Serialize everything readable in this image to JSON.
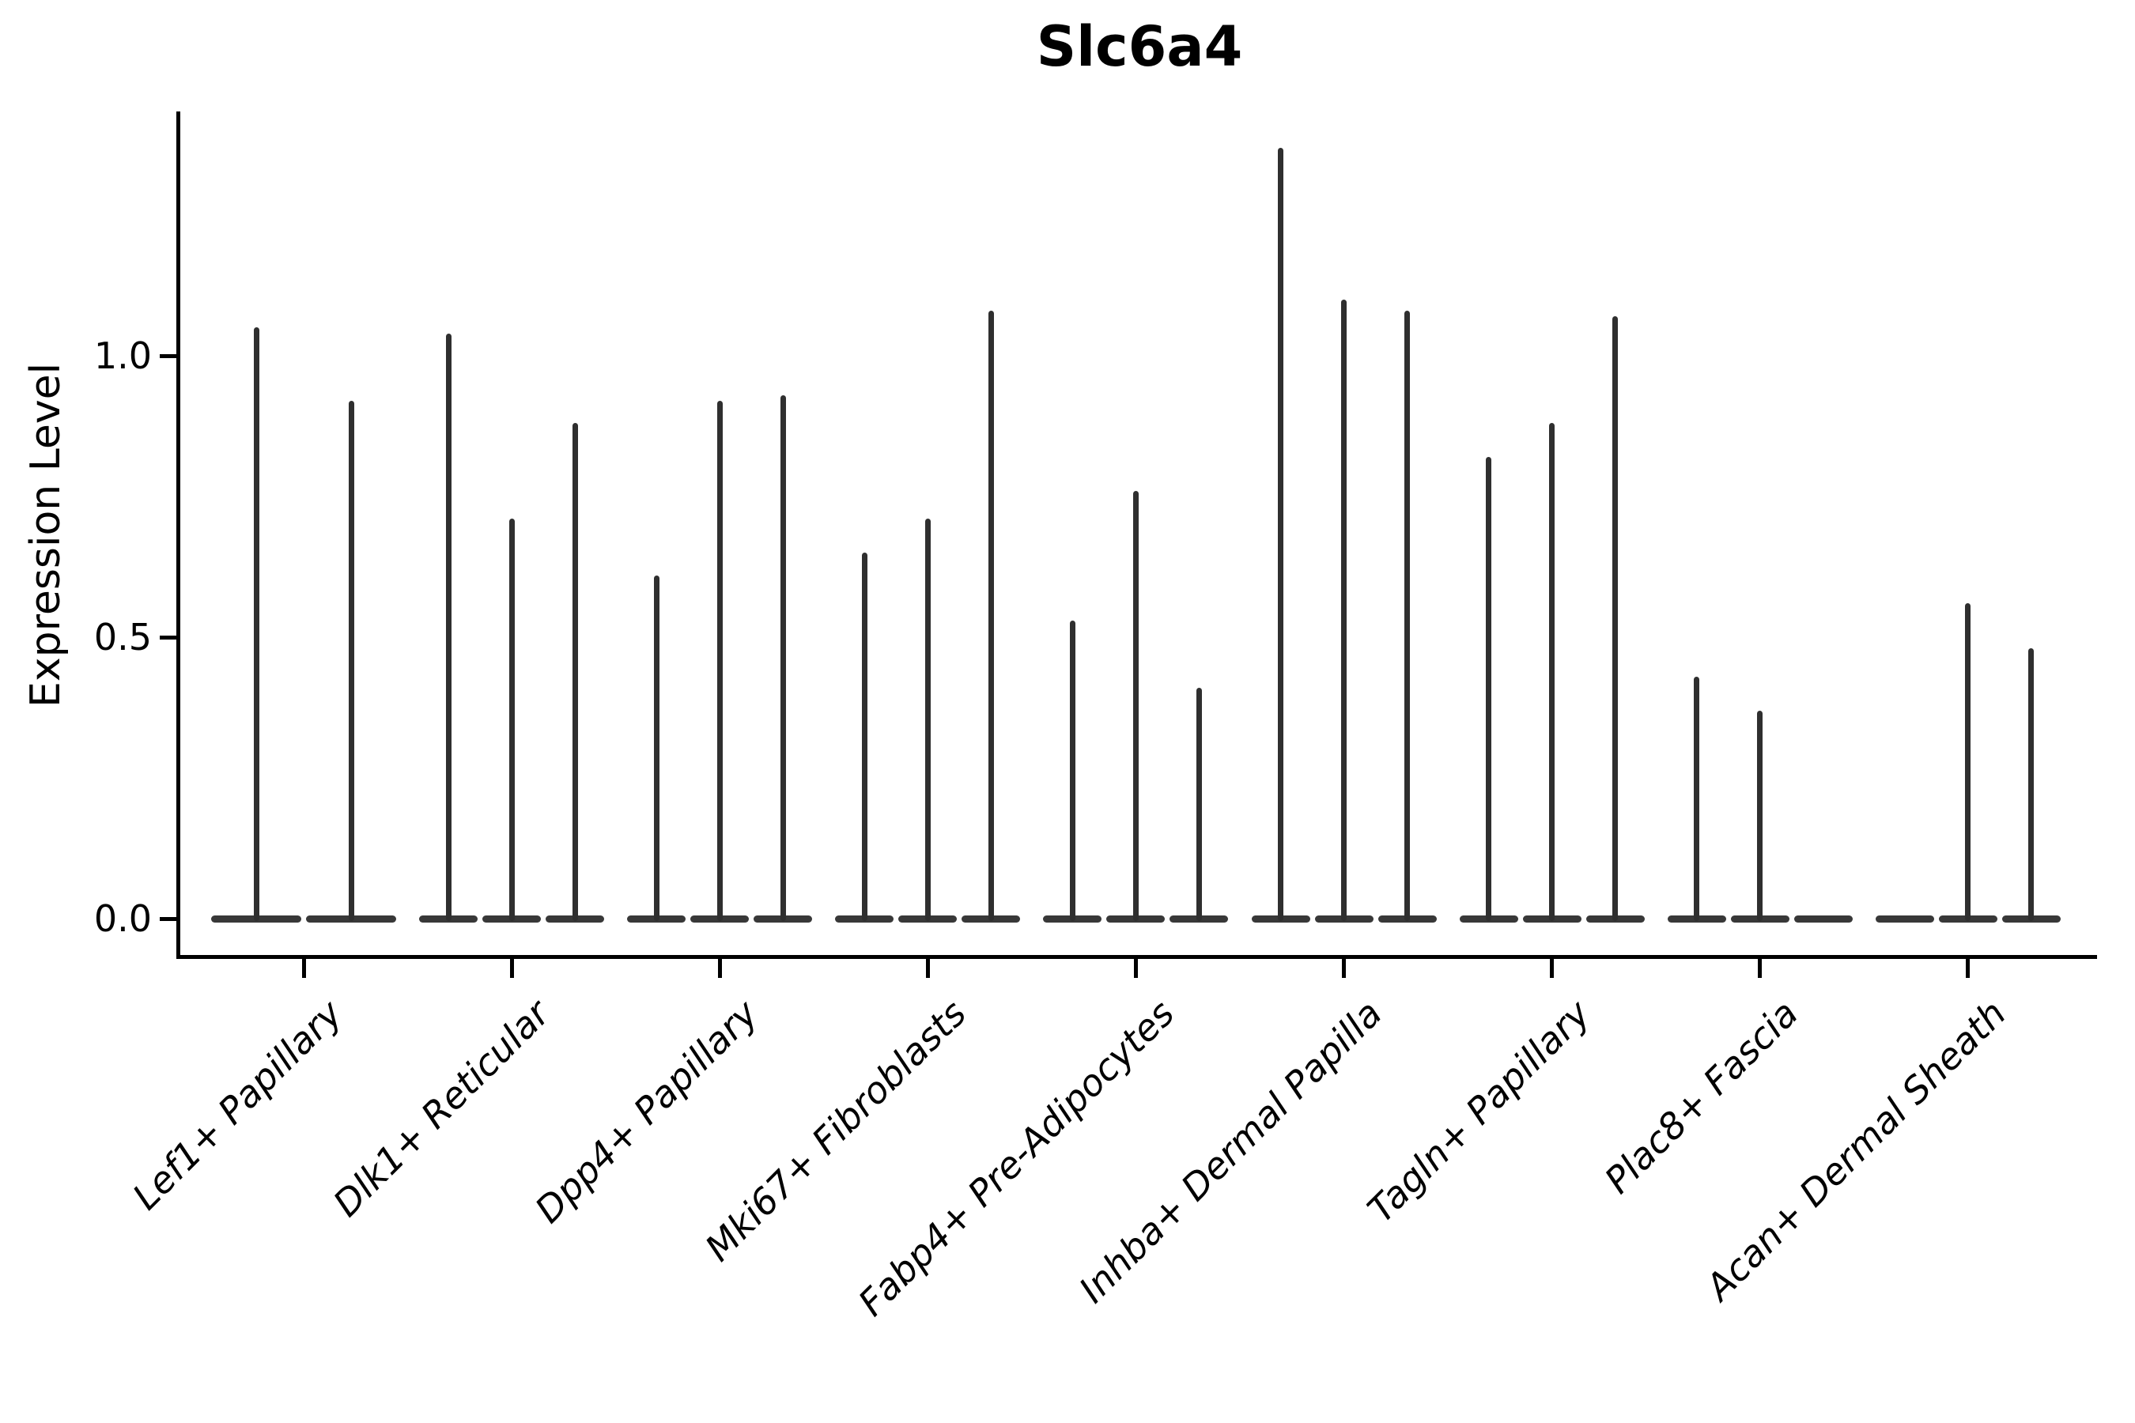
{
  "chart_data": {
    "type": "violin",
    "title": "Slc6a4",
    "ylabel": "Expression Level",
    "xlabel": "",
    "ylim": [
      0,
      1.43
    ],
    "grid": false,
    "legend": "none",
    "yticks": [
      {
        "value": 0.0,
        "label": "0.0"
      },
      {
        "value": 0.5,
        "label": "0.5"
      },
      {
        "value": 1.0,
        "label": "1.0"
      }
    ],
    "categories": [
      "Lef1+ Papillary",
      "Dlk1+ Reticular",
      "Dpp4+ Papillary",
      "Mki67+ Fibroblasts",
      "Fabp4+ Pre-Adipocytes",
      "Inhba+ Dermal Papilla",
      "Tagln+ Papillary",
      "Plac8+ Fascia",
      "Acan+ Dermal Sheath"
    ],
    "groups": [
      {
        "category": "Lef1+ Papillary",
        "violin_max_values": [
          1.05,
          0.92
        ]
      },
      {
        "category": "Dlk1+ Reticular",
        "violin_max_values": [
          1.04,
          0.71,
          0.88
        ]
      },
      {
        "category": "Dpp4+ Papillary",
        "violin_max_values": [
          0.61,
          0.92,
          0.93
        ]
      },
      {
        "category": "Mki67+ Fibroblasts",
        "violin_max_values": [
          0.65,
          0.71,
          1.08
        ]
      },
      {
        "category": "Fabp4+ Pre-Adipocytes",
        "violin_max_values": [
          0.53,
          0.76,
          0.41
        ]
      },
      {
        "category": "Inhba+ Dermal Papilla",
        "violin_max_values": [
          1.37,
          1.1,
          1.08
        ]
      },
      {
        "category": "Tagln+ Papillary",
        "violin_max_values": [
          0.82,
          0.88,
          1.07
        ]
      },
      {
        "category": "Plac8+ Fascia",
        "violin_max_values": [
          0.43,
          0.37,
          0
        ]
      },
      {
        "category": "Acan+ Dermal Sheath",
        "violin_max_values": [
          0,
          0.56,
          0.48
        ]
      }
    ],
    "colors": {
      "spike": "#2f2f2f",
      "violin_base": "#383838",
      "axis": "#000000",
      "text": "#000000",
      "background": "#ffffff"
    }
  }
}
